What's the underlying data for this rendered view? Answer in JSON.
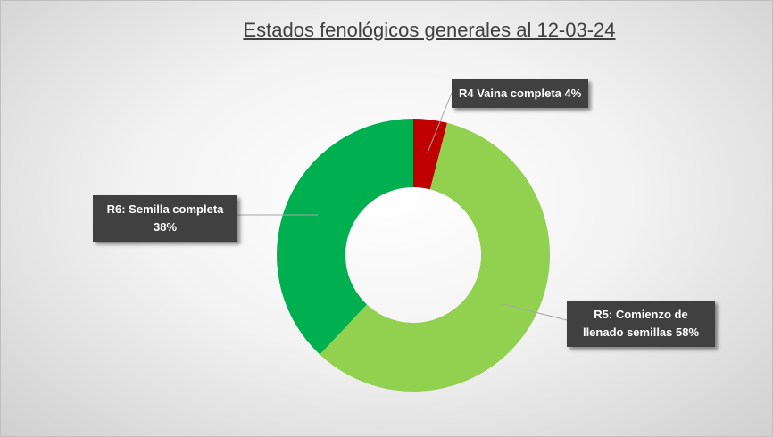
{
  "chart_data": {
    "type": "pie",
    "donut": true,
    "title": "Estados fenológicos generales al 12-03-24",
    "categories": [
      "R4 Vaina completa",
      "R5: Comienzo de llenado semillas",
      "R6: Semilla completa"
    ],
    "values": [
      4,
      58,
      38
    ],
    "value_labels": [
      "4%",
      "58%",
      "38%"
    ],
    "colors": [
      "#c00000",
      "#92d050",
      "#00b050"
    ]
  }
}
